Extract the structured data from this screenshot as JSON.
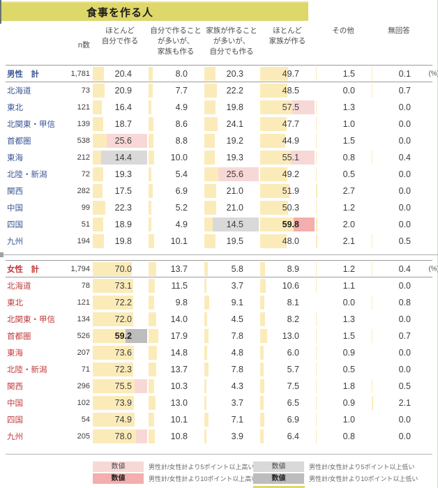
{
  "colors": {
    "title_bg": "#DED76A",
    "bar": "#FBEBB9",
    "pink5": "#F8D8D7",
    "pink10": "#F3AEAD",
    "gray5": "#D9D9D9",
    "gray10": "#BDBDBD",
    "male": "#3A5795",
    "female": "#C13B3B"
  },
  "chart_data": {
    "type": "table",
    "title": "食事を作る人",
    "unit_label": "(%)",
    "bar_scale": [
      0,
      100
    ],
    "columns": [
      "n数",
      "ほとんど\n自分で作る",
      "自分で作ること\nが多いが、\n家族も作る",
      "家族が作ること\nが多いが、\n自分でも作る",
      "ほとんど\n家族が作る",
      "その他",
      "無回答"
    ],
    "highlight_codes": {
      "p5": "5+ points higher than gender total (light pink)",
      "p10": "10+ points higher than gender total (dark pink, bold)",
      "g5": "5+ points lower than gender total (light gray)",
      "g10": "10+ points lower than gender total (dark gray, bold)"
    },
    "sections": [
      {
        "id": "male",
        "rows": [
          {
            "label": "男性　計",
            "total": true,
            "n": "1,781",
            "values": [
              "20.4",
              "8.0",
              "20.3",
              "49.7",
              "1.5",
              "0.1"
            ],
            "hl": [
              "",
              "",
              "",
              "",
              "",
              ""
            ]
          },
          {
            "label": "北海道",
            "n": "73",
            "values": [
              "20.9",
              "7.7",
              "22.2",
              "48.5",
              "0.0",
              "0.7"
            ],
            "hl": [
              "",
              "",
              "",
              "",
              "",
              ""
            ]
          },
          {
            "label": "東北",
            "n": "121",
            "values": [
              "16.4",
              "4.9",
              "19.8",
              "57.5",
              "1.3",
              "0.0"
            ],
            "hl": [
              "",
              "",
              "",
              "p5",
              "",
              ""
            ]
          },
          {
            "label": "北関東・甲信",
            "n": "139",
            "values": [
              "18.7",
              "8.6",
              "24.1",
              "47.7",
              "1.0",
              "0.0"
            ],
            "hl": [
              "",
              "",
              "",
              "",
              "",
              ""
            ]
          },
          {
            "label": "首都圏",
            "n": "538",
            "values": [
              "25.6",
              "8.8",
              "19.2",
              "44.9",
              "1.5",
              "0.0"
            ],
            "hl": [
              "p5",
              "",
              "",
              "",
              "",
              ""
            ]
          },
          {
            "label": "東海",
            "n": "212",
            "values": [
              "14.4",
              "10.0",
              "19.3",
              "55.1",
              "0.8",
              "0.4"
            ],
            "hl": [
              "g5",
              "",
              "",
              "p5",
              "",
              ""
            ]
          },
          {
            "label": "北陸・新潟",
            "n": "72",
            "values": [
              "19.3",
              "5.4",
              "25.6",
              "49.2",
              "0.5",
              "0.0"
            ],
            "hl": [
              "",
              "",
              "p5",
              "",
              "",
              ""
            ]
          },
          {
            "label": "関西",
            "n": "282",
            "values": [
              "17.5",
              "6.9",
              "21.0",
              "51.9",
              "2.7",
              "0.0"
            ],
            "hl": [
              "",
              "",
              "",
              "",
              "",
              ""
            ]
          },
          {
            "label": "中国",
            "n": "99",
            "values": [
              "22.3",
              "5.2",
              "21.0",
              "50.3",
              "1.2",
              "0.0"
            ],
            "hl": [
              "",
              "",
              "",
              "",
              "",
              ""
            ]
          },
          {
            "label": "四国",
            "n": "51",
            "values": [
              "18.9",
              "4.9",
              "14.5",
              "59.8",
              "2.0",
              "0.0"
            ],
            "hl": [
              "",
              "",
              "g5",
              "p10",
              "",
              ""
            ]
          },
          {
            "label": "九州",
            "n": "194",
            "values": [
              "19.8",
              "10.1",
              "19.5",
              "48.0",
              "2.1",
              "0.5"
            ],
            "hl": [
              "",
              "",
              "",
              "",
              "",
              ""
            ]
          }
        ]
      },
      {
        "id": "female",
        "rows": [
          {
            "label": "女性　計",
            "total": true,
            "n": "1,794",
            "values": [
              "70.0",
              "13.7",
              "5.8",
              "8.9",
              "1.2",
              "0.4"
            ],
            "hl": [
              "",
              "",
              "",
              "",
              "",
              ""
            ]
          },
          {
            "label": "北海道",
            "n": "78",
            "values": [
              "73.1",
              "11.5",
              "3.7",
              "10.6",
              "1.1",
              "0.0"
            ],
            "hl": [
              "",
              "",
              "",
              "",
              "",
              ""
            ]
          },
          {
            "label": "東北",
            "n": "121",
            "values": [
              "72.2",
              "9.8",
              "9.1",
              "8.1",
              "0.0",
              "0.8"
            ],
            "hl": [
              "",
              "",
              "",
              "",
              "",
              ""
            ]
          },
          {
            "label": "北関東・甲信",
            "n": "134",
            "values": [
              "72.0",
              "14.0",
              "4.5",
              "8.2",
              "1.3",
              "0.0"
            ],
            "hl": [
              "",
              "",
              "",
              "",
              "",
              ""
            ]
          },
          {
            "label": "首都圏",
            "n": "526",
            "values": [
              "59.2",
              "17.9",
              "7.8",
              "13.0",
              "1.5",
              "0.7"
            ],
            "hl": [
              "g10",
              "",
              "",
              "",
              "",
              ""
            ]
          },
          {
            "label": "東海",
            "n": "207",
            "values": [
              "73.6",
              "14.8",
              "4.8",
              "6.0",
              "0.9",
              "0.0"
            ],
            "hl": [
              "",
              "",
              "",
              "",
              "",
              ""
            ]
          },
          {
            "label": "北陸・新潟",
            "n": "71",
            "values": [
              "72.3",
              "13.7",
              "7.8",
              "5.7",
              "0.5",
              "0.0"
            ],
            "hl": [
              "",
              "",
              "",
              "",
              "",
              ""
            ]
          },
          {
            "label": "関西",
            "n": "296",
            "values": [
              "75.5",
              "10.3",
              "4.3",
              "7.5",
              "1.8",
              "0.5"
            ],
            "hl": [
              "p5",
              "",
              "",
              "",
              "",
              ""
            ]
          },
          {
            "label": "中国",
            "n": "102",
            "values": [
              "73.9",
              "13.0",
              "3.7",
              "6.5",
              "0.9",
              "2.1"
            ],
            "hl": [
              "",
              "",
              "",
              "",
              "",
              ""
            ]
          },
          {
            "label": "四国",
            "n": "54",
            "values": [
              "74.9",
              "10.1",
              "7.1",
              "6.9",
              "1.0",
              "0.0"
            ],
            "hl": [
              "",
              "",
              "",
              "",
              "",
              ""
            ]
          },
          {
            "label": "九州",
            "n": "205",
            "values": [
              "78.0",
              "10.8",
              "3.9",
              "6.4",
              "0.8",
              "0.0"
            ],
            "hl": [
              "p5",
              "",
              "",
              "",
              "",
              ""
            ]
          }
        ]
      }
    ]
  },
  "legend": {
    "items": [
      {
        "style": "pink5",
        "box": "数値",
        "desc": "男性計/女性計より5ポイント以上高い"
      },
      {
        "style": "pink10",
        "box": "数値",
        "desc": "男性計/女性計より10ポイント以上高い"
      },
      {
        "style": "gray5",
        "box": "数値",
        "desc": "男性計/女性計より5ポイント以上低い"
      },
      {
        "style": "gray10",
        "box": "数値",
        "desc": "男性計/女性計より10ポイント以上低い"
      }
    ]
  }
}
